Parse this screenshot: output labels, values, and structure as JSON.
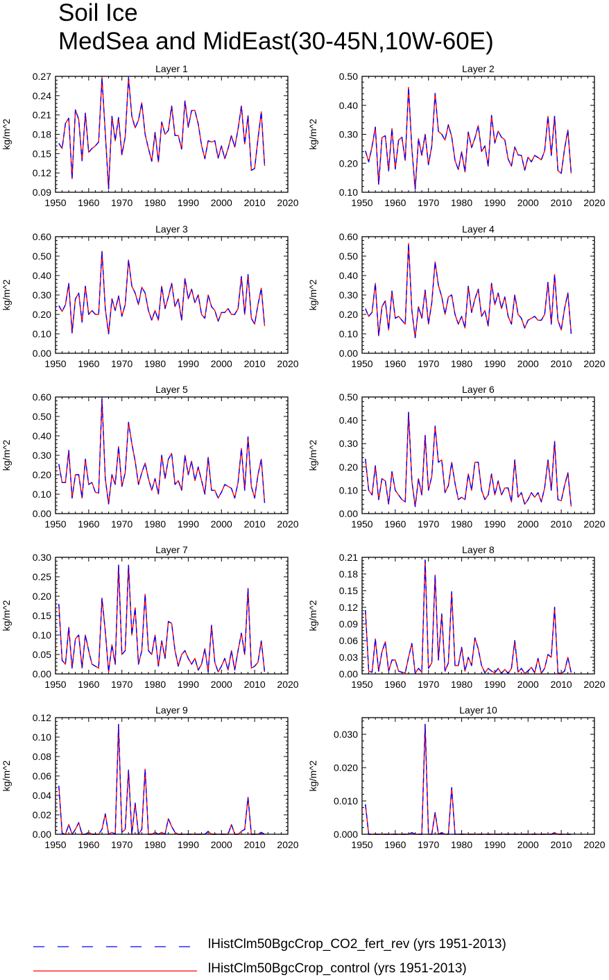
{
  "title": [
    "Soil Ice",
    "MedSea and MidEast(30-45N,10W-60E)"
  ],
  "legend": [
    {
      "label": "lHistClm50BgcCrop_CO2_fert_rev (yrs 1951-2013)",
      "color": "#0000ff",
      "style": "dashed"
    },
    {
      "label": "lHistClm50BgcCrop_control (yrs 1951-2013)",
      "color": "#ff0000",
      "style": "solid"
    }
  ],
  "chart_data": [
    {
      "type": "line",
      "title": "Layer 1",
      "ylabel": "kg/m^2",
      "xlim": [
        1950,
        2020
      ],
      "ylim": [
        0.09,
        0.27
      ],
      "xticks": [
        "1950",
        "1960",
        "1970",
        "1980",
        "1990",
        "2000",
        "2010",
        "2020"
      ],
      "yticks": [
        "0.09",
        "0.12",
        "0.15",
        "0.18",
        "0.21",
        "0.24",
        "0.27"
      ],
      "x_start": 1951,
      "values": [
        0.166,
        0.158,
        0.197,
        0.205,
        0.111,
        0.218,
        0.203,
        0.139,
        0.213,
        0.152,
        0.158,
        0.162,
        0.168,
        0.268,
        0.182,
        0.095,
        0.208,
        0.17,
        0.206,
        0.148,
        0.176,
        0.268,
        0.208,
        0.19,
        0.202,
        0.229,
        0.18,
        0.158,
        0.138,
        0.183,
        0.137,
        0.199,
        0.18,
        0.186,
        0.224,
        0.178,
        0.178,
        0.157,
        0.232,
        0.191,
        0.217,
        0.217,
        0.196,
        0.163,
        0.142,
        0.17,
        0.168,
        0.17,
        0.143,
        0.162,
        0.142,
        0.158,
        0.178,
        0.16,
        0.188,
        0.224,
        0.165,
        0.209,
        0.124,
        0.127,
        0.173,
        0.215,
        0.131
      ]
    },
    {
      "type": "line",
      "title": "Layer 2",
      "ylabel": "kg/m^2",
      "xlim": [
        1950,
        2020
      ],
      "ylim": [
        0.1,
        0.5
      ],
      "xticks": [
        "1950",
        "1960",
        "1970",
        "1980",
        "1990",
        "2000",
        "2010",
        "2020"
      ],
      "yticks": [
        "0.10",
        "0.20",
        "0.30",
        "0.40",
        "0.50"
      ],
      "x_start": 1951,
      "values": [
        0.243,
        0.205,
        0.257,
        0.325,
        0.127,
        0.289,
        0.295,
        0.174,
        0.32,
        0.18,
        0.28,
        0.29,
        0.21,
        0.462,
        0.25,
        0.11,
        0.285,
        0.227,
        0.3,
        0.195,
        0.26,
        0.441,
        0.31,
        0.3,
        0.28,
        0.333,
        0.292,
        0.21,
        0.178,
        0.24,
        0.17,
        0.308,
        0.254,
        0.287,
        0.33,
        0.24,
        0.26,
        0.19,
        0.365,
        0.27,
        0.311,
        0.29,
        0.281,
        0.215,
        0.19,
        0.256,
        0.229,
        0.227,
        0.176,
        0.221,
        0.205,
        0.227,
        0.22,
        0.212,
        0.243,
        0.362,
        0.227,
        0.362,
        0.175,
        0.165,
        0.25,
        0.315,
        0.165
      ]
    },
    {
      "type": "line",
      "title": "Layer 3",
      "ylabel": "kg/m^2",
      "xlim": [
        1950,
        2020
      ],
      "ylim": [
        0.0,
        0.6
      ],
      "xticks": [
        "1950",
        "1960",
        "1970",
        "1980",
        "1990",
        "2000",
        "2010",
        "2020"
      ],
      "yticks": [
        "0.00",
        "0.10",
        "0.20",
        "0.30",
        "0.40",
        "0.50",
        "0.60"
      ],
      "x_start": 1951,
      "values": [
        0.245,
        0.215,
        0.25,
        0.36,
        0.105,
        0.28,
        0.31,
        0.16,
        0.345,
        0.2,
        0.22,
        0.2,
        0.2,
        0.525,
        0.23,
        0.1,
        0.28,
        0.22,
        0.295,
        0.19,
        0.25,
        0.48,
        0.345,
        0.31,
        0.25,
        0.34,
        0.31,
        0.22,
        0.17,
        0.22,
        0.17,
        0.345,
        0.23,
        0.29,
        0.36,
        0.24,
        0.28,
        0.17,
        0.385,
        0.28,
        0.33,
        0.26,
        0.3,
        0.2,
        0.18,
        0.3,
        0.24,
        0.22,
        0.165,
        0.21,
        0.21,
        0.23,
        0.2,
        0.2,
        0.23,
        0.395,
        0.2,
        0.405,
        0.18,
        0.15,
        0.25,
        0.335,
        0.14
      ]
    },
    {
      "type": "line",
      "title": "Layer 4",
      "ylabel": "kg/m^2",
      "xlim": [
        1950,
        2020
      ],
      "ylim": [
        0.0,
        0.6
      ],
      "xticks": [
        "1950",
        "1960",
        "1970",
        "1980",
        "1990",
        "2000",
        "2010",
        "2020"
      ],
      "yticks": [
        "0.00",
        "0.10",
        "0.20",
        "0.30",
        "0.40",
        "0.50",
        "0.60"
      ],
      "x_start": 1951,
      "values": [
        0.23,
        0.19,
        0.21,
        0.36,
        0.09,
        0.24,
        0.27,
        0.12,
        0.32,
        0.18,
        0.19,
        0.17,
        0.15,
        0.565,
        0.22,
        0.08,
        0.24,
        0.18,
        0.325,
        0.15,
        0.26,
        0.47,
        0.35,
        0.29,
        0.2,
        0.29,
        0.3,
        0.2,
        0.15,
        0.19,
        0.13,
        0.345,
        0.21,
        0.28,
        0.33,
        0.19,
        0.22,
        0.14,
        0.36,
        0.25,
        0.31,
        0.23,
        0.29,
        0.19,
        0.15,
        0.3,
        0.2,
        0.18,
        0.13,
        0.17,
        0.18,
        0.19,
        0.17,
        0.17,
        0.2,
        0.365,
        0.15,
        0.405,
        0.17,
        0.12,
        0.23,
        0.31,
        0.1
      ]
    },
    {
      "type": "line",
      "title": "Layer 5",
      "ylabel": "kg/m^2",
      "xlim": [
        1950,
        2020
      ],
      "ylim": [
        0.0,
        0.6
      ],
      "xticks": [
        "1950",
        "1960",
        "1970",
        "1980",
        "1990",
        "2000",
        "2010",
        "2020"
      ],
      "yticks": [
        "0.00",
        "0.10",
        "0.20",
        "0.30",
        "0.40",
        "0.50",
        "0.60"
      ],
      "x_start": 1951,
      "values": [
        0.255,
        0.16,
        0.16,
        0.325,
        0.08,
        0.2,
        0.2,
        0.08,
        0.28,
        0.15,
        0.16,
        0.11,
        0.105,
        0.59,
        0.18,
        0.05,
        0.2,
        0.15,
        0.345,
        0.14,
        0.21,
        0.47,
        0.36,
        0.27,
        0.15,
        0.21,
        0.26,
        0.18,
        0.12,
        0.18,
        0.1,
        0.3,
        0.18,
        0.28,
        0.31,
        0.15,
        0.17,
        0.12,
        0.3,
        0.2,
        0.27,
        0.17,
        0.24,
        0.17,
        0.1,
        0.29,
        0.12,
        0.12,
        0.08,
        0.11,
        0.15,
        0.14,
        0.13,
        0.08,
        0.16,
        0.335,
        0.12,
        0.395,
        0.14,
        0.08,
        0.2,
        0.28,
        0.055
      ]
    },
    {
      "type": "line",
      "title": "Layer 6",
      "ylabel": "kg/m^2",
      "xlim": [
        1950,
        2020
      ],
      "ylim": [
        0.0,
        0.5
      ],
      "xticks": [
        "1950",
        "1960",
        "1970",
        "1980",
        "1990",
        "2000",
        "2010",
        "2020"
      ],
      "yticks": [
        "0.00",
        "0.10",
        "0.20",
        "0.30",
        "0.40",
        "0.50"
      ],
      "x_start": 1951,
      "values": [
        0.235,
        0.1,
        0.08,
        0.205,
        0.06,
        0.15,
        0.14,
        0.04,
        0.18,
        0.1,
        0.08,
        0.06,
        0.05,
        0.435,
        0.14,
        0.03,
        0.15,
        0.08,
        0.335,
        0.1,
        0.16,
        0.375,
        0.22,
        0.23,
        0.09,
        0.12,
        0.22,
        0.13,
        0.06,
        0.07,
        0.06,
        0.17,
        0.1,
        0.22,
        0.22,
        0.1,
        0.06,
        0.08,
        0.17,
        0.08,
        0.14,
        0.08,
        0.11,
        0.11,
        0.05,
        0.23,
        0.07,
        0.09,
        0.04,
        0.06,
        0.09,
        0.07,
        0.09,
        0.05,
        0.11,
        0.23,
        0.1,
        0.31,
        0.06,
        0.055,
        0.12,
        0.175,
        0.03
      ]
    },
    {
      "type": "line",
      "title": "Layer 7",
      "ylabel": "kg/m^2",
      "xlim": [
        1950,
        2020
      ],
      "ylim": [
        0.0,
        0.3
      ],
      "xticks": [
        "1950",
        "1960",
        "1970",
        "1980",
        "1990",
        "2000",
        "2010",
        "2020"
      ],
      "yticks": [
        "0.00",
        "0.05",
        "0.10",
        "0.15",
        "0.20",
        "0.25",
        "0.30"
      ],
      "x_start": 1951,
      "values": [
        0.18,
        0.035,
        0.025,
        0.12,
        0.015,
        0.09,
        0.1,
        0.015,
        0.1,
        0.06,
        0.025,
        0.02,
        0.015,
        0.195,
        0.11,
        0.005,
        0.075,
        0.025,
        0.28,
        0.05,
        0.06,
        0.28,
        0.1,
        0.17,
        0.025,
        0.06,
        0.205,
        0.06,
        0.05,
        0.1,
        0.02,
        0.085,
        0.04,
        0.135,
        0.13,
        0.06,
        0.02,
        0.05,
        0.06,
        0.04,
        0.025,
        0.04,
        0.01,
        0.025,
        0.065,
        0.005,
        0.125,
        0.03,
        0.005,
        0.02,
        0.04,
        0.01,
        0.06,
        0.01,
        0.06,
        0.105,
        0.05,
        0.22,
        0.015,
        0.02,
        0.03,
        0.085,
        0.005
      ]
    },
    {
      "type": "line",
      "title": "Layer 8",
      "ylabel": "kg/m^2",
      "xlim": [
        1950,
        2020
      ],
      "ylim": [
        0.0,
        0.21
      ],
      "xticks": [
        "1950",
        "1960",
        "1970",
        "1980",
        "1990",
        "2000",
        "2010",
        "2020"
      ],
      "yticks": [
        "0.00",
        "0.03",
        "0.06",
        "0.09",
        "0.12",
        "0.15",
        "0.18",
        "0.21"
      ],
      "x_start": 1951,
      "values": [
        0.115,
        0.005,
        0.003,
        0.063,
        0.005,
        0.04,
        0.058,
        0.005,
        0.025,
        0.025,
        0.005,
        0.003,
        0.002,
        0.03,
        0.055,
        0.001,
        0.01,
        0.003,
        0.205,
        0.01,
        0.02,
        0.178,
        0.025,
        0.108,
        0.005,
        0.02,
        0.148,
        0.015,
        0.015,
        0.048,
        0.005,
        0.03,
        0.015,
        0.065,
        0.045,
        0.015,
        0.002,
        0.01,
        0.005,
        0.002,
        0.01,
        0.001,
        0.008,
        0.001,
        0.01,
        0.06,
        0.003,
        0.01,
        0.001,
        0.005,
        0.012,
        0.002,
        0.028,
        0.001,
        0.01,
        0.035,
        0.03,
        0.12,
        0.002,
        0.001,
        0.005,
        0.03,
        0.002
      ]
    },
    {
      "type": "line",
      "title": "Layer 9",
      "ylabel": "kg/m^2",
      "xlim": [
        1950,
        2020
      ],
      "ylim": [
        0.0,
        0.12
      ],
      "xticks": [
        "1950",
        "1960",
        "1970",
        "1980",
        "1990",
        "2000",
        "2010",
        "2020"
      ],
      "yticks": [
        "0.00",
        "0.02",
        "0.04",
        "0.06",
        "0.08",
        "0.10",
        "0.12"
      ],
      "x_start": 1951,
      "values": [
        0.05,
        0.001,
        0.0,
        0.01,
        0.0,
        0.005,
        0.012,
        0.0,
        0.0,
        0.002,
        0.0,
        0.0,
        0.0,
        0.005,
        0.021,
        0.0,
        0.002,
        0.0,
        0.113,
        0.002,
        0.005,
        0.066,
        0.0,
        0.032,
        0.0,
        0.005,
        0.067,
        0.0,
        0.0,
        0.002,
        0.0,
        0.002,
        0.0,
        0.016,
        0.008,
        0.002,
        0.0,
        0.0,
        0.0,
        0.0,
        0.0,
        0.0,
        0.0,
        0.0,
        0.0,
        0.003,
        0.0,
        0.0,
        0.0,
        0.0,
        0.0,
        0.0,
        0.01,
        0.0,
        0.0,
        0.003,
        0.005,
        0.038,
        0.0,
        0.0,
        0.0,
        0.002,
        0.0
      ]
    },
    {
      "type": "line",
      "title": "Layer 10",
      "ylabel": "kg/m^2",
      "xlim": [
        1950,
        2020
      ],
      "ylim": [
        0.0,
        0.035
      ],
      "xticks": [
        "1950",
        "1960",
        "1970",
        "1980",
        "1990",
        "2000",
        "2010",
        "2020"
      ],
      "yticks": [
        "0.000",
        "0.010",
        "0.020",
        "0.030"
      ],
      "x_start": 1951,
      "values": [
        0.009,
        0.0,
        0.0,
        0.0,
        0.0,
        0.0,
        0.0,
        0.0,
        0.0,
        0.0,
        0.0,
        0.0,
        0.0,
        0.0,
        0.0005,
        0.0,
        0.0,
        0.0,
        0.033,
        0.0,
        0.0,
        0.0065,
        0.0,
        0.0005,
        0.0,
        0.0,
        0.014,
        0.0,
        0.0,
        0.0,
        0.0,
        0.0,
        0.0,
        0.0,
        0.0,
        0.0,
        0.0,
        0.0,
        0.0,
        0.0,
        0.0,
        0.0,
        0.0,
        0.0,
        0.0,
        0.0,
        0.0,
        0.0,
        0.0,
        0.0,
        0.0,
        0.0,
        0.0,
        0.0,
        0.0,
        0.0,
        0.0,
        0.0005,
        0.0,
        0.0,
        0.0,
        0.0,
        0.0
      ]
    }
  ]
}
